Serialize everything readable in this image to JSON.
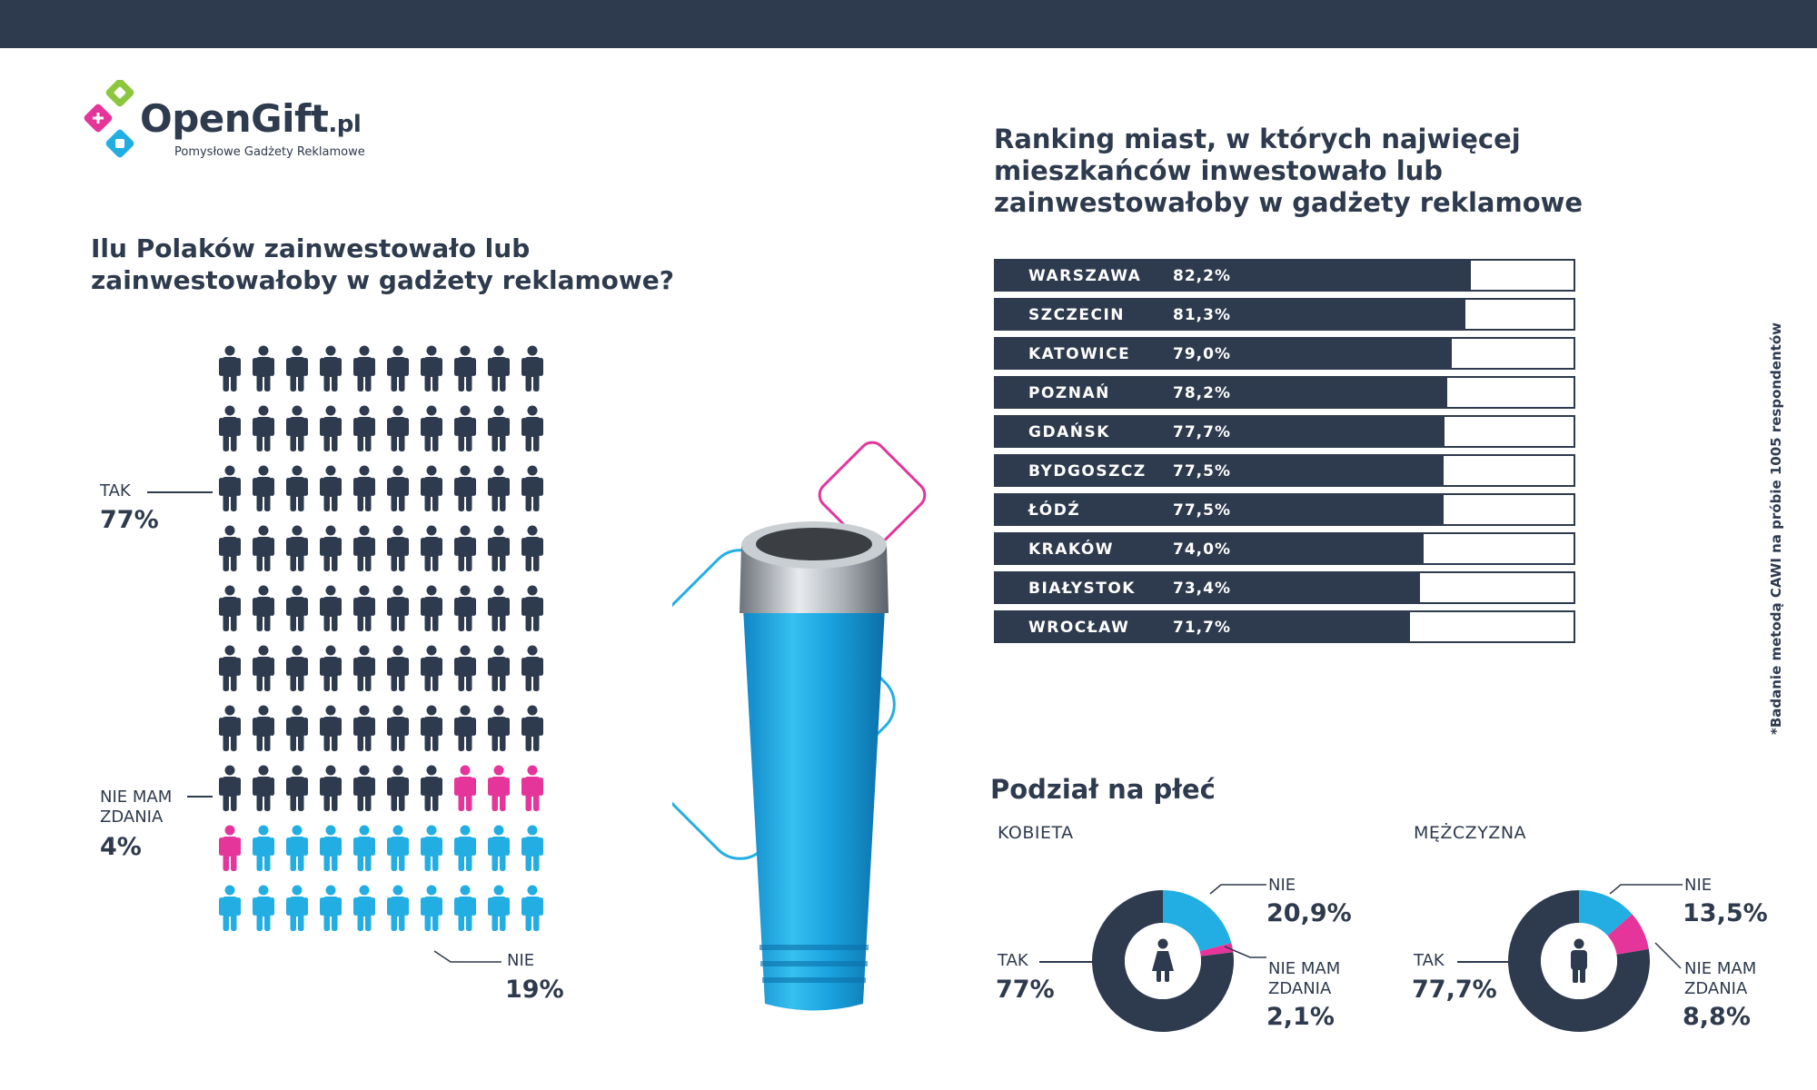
{
  "logo": {
    "name": "OpenGift",
    "tld": ".pl",
    "tagline": "Pomysłowe Gadżety Reklamowe"
  },
  "left_question": "Ilu Polaków zainwestowało lub zainwestowałoby w gadżety reklamowe?",
  "right_title": "Ranking miast, w których najwięcej mieszkańców inwestowało lub zainwestowałoby w gadżety reklamowe",
  "gender_title": "Podział na płeć",
  "footnote": "*Badanie metodą CAWI na próbie 1005 respondentów",
  "colors": {
    "dark": "#2e3a4d",
    "magenta": "#e5359b",
    "cyan": "#23aee3"
  },
  "icons": [
    "person-icon",
    "female-icon",
    "male-icon",
    "logo-mark-icon"
  ],
  "chart_data": [
    {
      "type": "pictogram",
      "total_icons": 100,
      "series": [
        {
          "name": "TAK",
          "label": "TAK",
          "value_label": "77%",
          "value": 77,
          "color": "#2e3a4d"
        },
        {
          "name": "NIE MAM ZDANIA",
          "label": "NIE MAM ZDANIA",
          "value_label": "4%",
          "value": 4,
          "color": "#e5359b"
        },
        {
          "name": "NIE",
          "label": "NIE",
          "value_label": "19%",
          "value": 19,
          "color": "#23aee3"
        }
      ]
    },
    {
      "type": "bar",
      "orientation": "horizontal",
      "categories": [
        "WARSZAWA",
        "SZCZECIN",
        "KATOWICE",
        "POZNAŃ",
        "GDAŃSK",
        "BYDGOSZCZ",
        "ŁÓDŹ",
        "KRAKÓW",
        "BIAŁYSTOK",
        "WROCŁAW"
      ],
      "values": [
        82.2,
        81.3,
        79.0,
        78.2,
        77.7,
        77.5,
        77.5,
        74.0,
        73.4,
        71.7
      ],
      "value_labels": [
        "82,2%",
        "81,3%",
        "79,0%",
        "78,2%",
        "77,7%",
        "77,5%",
        "77,5%",
        "74,0%",
        "73,4%",
        "71,7%"
      ],
      "xlim": [
        0,
        100
      ]
    },
    {
      "type": "pie",
      "title": "KOBIETA",
      "slices": [
        {
          "label": "NIE",
          "value": 20.9,
          "value_label": "20,9%",
          "color": "#23aee3"
        },
        {
          "label": "NIE MAM ZDANIA",
          "value": 2.1,
          "value_label": "2,1%",
          "color": "#e5359b"
        },
        {
          "label": "TAK",
          "value": 77.0,
          "value_label": "77%",
          "color": "#2e3a4d"
        }
      ]
    },
    {
      "type": "pie",
      "title": "MĘŻCZYZNA",
      "slices": [
        {
          "label": "NIE",
          "value": 13.5,
          "value_label": "13,5%",
          "color": "#23aee3"
        },
        {
          "label": "NIE MAM ZDANIA",
          "value": 8.8,
          "value_label": "8,8%",
          "color": "#e5359b"
        },
        {
          "label": "TAK",
          "value": 77.7,
          "value_label": "77,7%",
          "color": "#2e3a4d"
        }
      ]
    }
  ]
}
